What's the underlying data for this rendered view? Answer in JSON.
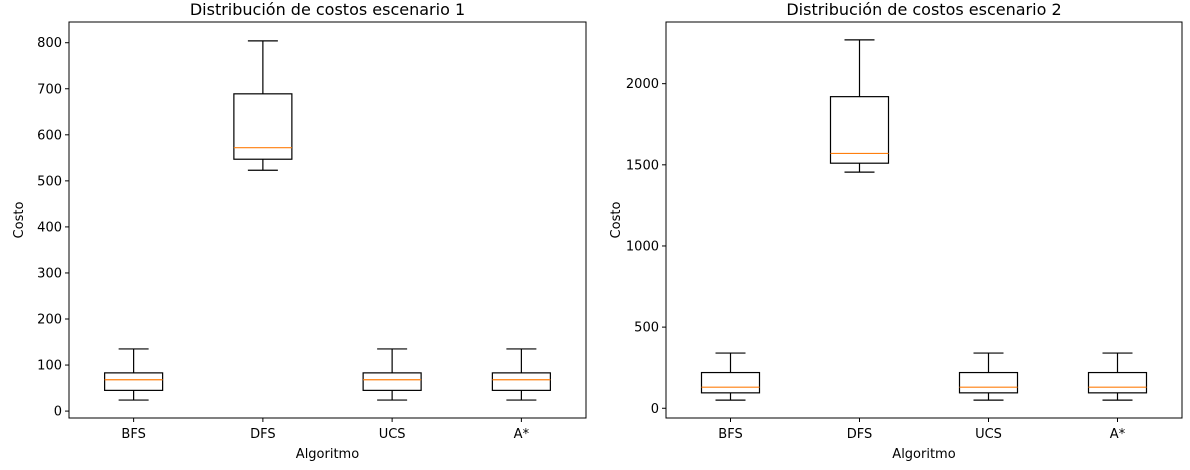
{
  "chart_data": [
    {
      "type": "boxplot",
      "title": "Distribución de costos escenario 1",
      "xlabel": "Algoritmo",
      "ylabel": "Costo",
      "categories": [
        "BFS",
        "DFS",
        "UCS",
        "A*"
      ],
      "ylim": [
        -15,
        845
      ],
      "yticks": [
        0,
        100,
        200,
        300,
        400,
        500,
        600,
        700,
        800
      ],
      "ytick_labels": [
        "0",
        "100",
        "200",
        "300",
        "400",
        "500",
        "600",
        "700",
        "800"
      ],
      "boxes": [
        {
          "category": "BFS",
          "whisker_low": 24,
          "q1": 45,
          "median": 68,
          "q3": 83,
          "whisker_high": 135
        },
        {
          "category": "DFS",
          "whisker_low": 523,
          "q1": 547,
          "median": 572,
          "q3": 689,
          "whisker_high": 804
        },
        {
          "category": "UCS",
          "whisker_low": 24,
          "q1": 45,
          "median": 68,
          "q3": 83,
          "whisker_high": 135
        },
        {
          "category": "A*",
          "whisker_low": 24,
          "q1": 45,
          "median": 68,
          "q3": 83,
          "whisker_high": 135
        }
      ],
      "grid": false,
      "colors": {
        "box": "#000000",
        "median": "#ff7f0e"
      }
    },
    {
      "type": "boxplot",
      "title": "Distribución de costos escenario 2",
      "xlabel": "Algoritmo",
      "ylabel": "Costo",
      "categories": [
        "BFS",
        "DFS",
        "UCS",
        "A*"
      ],
      "ylim": [
        -60,
        2380
      ],
      "yticks": [
        0,
        500,
        1000,
        1500,
        2000
      ],
      "ytick_labels": [
        "0",
        "500",
        "1000",
        "1500",
        "2000"
      ],
      "boxes": [
        {
          "category": "BFS",
          "whisker_low": 50,
          "q1": 95,
          "median": 130,
          "q3": 220,
          "whisker_high": 340
        },
        {
          "category": "DFS",
          "whisker_low": 1455,
          "q1": 1510,
          "median": 1570,
          "q3": 1920,
          "whisker_high": 2270
        },
        {
          "category": "UCS",
          "whisker_low": 50,
          "q1": 95,
          "median": 130,
          "q3": 220,
          "whisker_high": 340
        },
        {
          "category": "A*",
          "whisker_low": 50,
          "q1": 95,
          "median": 130,
          "q3": 220,
          "whisker_high": 340
        }
      ],
      "grid": false,
      "colors": {
        "box": "#000000",
        "median": "#ff7f0e"
      }
    }
  ]
}
